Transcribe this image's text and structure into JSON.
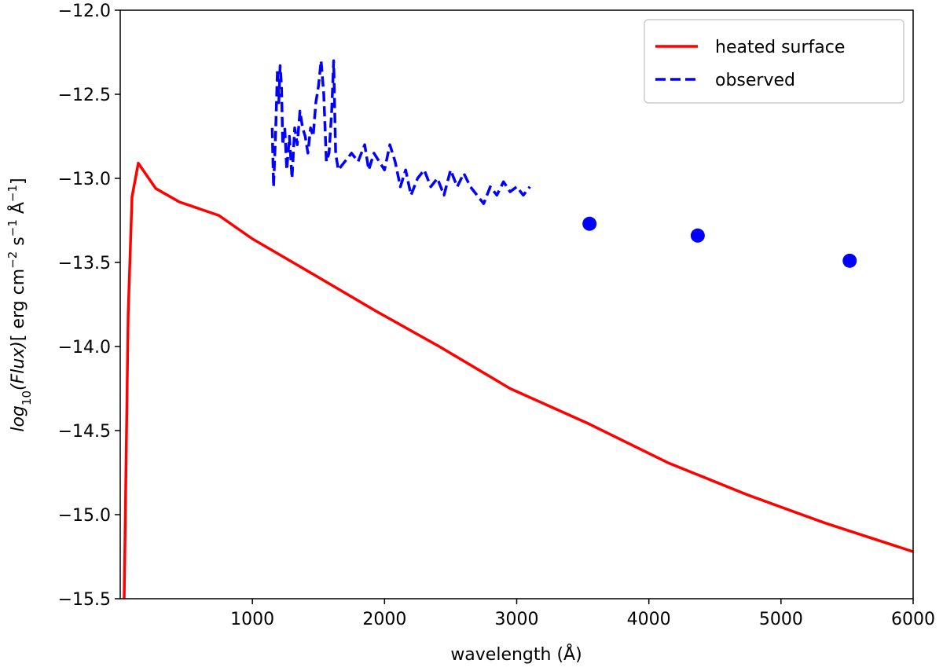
{
  "chart_data": {
    "type": "line",
    "xlabel": "wavelength (Å)",
    "ylabel": [
      "log",
      "10",
      "(Flux)",
      "[ erg cm",
      "−2",
      " s",
      "−1",
      " Å",
      "−1",
      "]"
    ],
    "xlim": [
      0,
      6000
    ],
    "ylim": [
      -15.5,
      -12.0
    ],
    "xticks": [
      1000,
      2000,
      3000,
      4000,
      5000,
      6000
    ],
    "yticks": [
      {
        "value": -15.5,
        "label": "−15.5"
      },
      {
        "value": -15.0,
        "label": "−15.0"
      },
      {
        "value": -14.5,
        "label": "−14.5"
      },
      {
        "value": -14.0,
        "label": "−14.0"
      },
      {
        "value": -13.5,
        "label": "−13.5"
      },
      {
        "value": -13.0,
        "label": "−13.0"
      },
      {
        "value": -12.5,
        "label": "−12.5"
      },
      {
        "value": -12.0,
        "label": "−12.0"
      }
    ],
    "legend": "upper right",
    "series": [
      {
        "name": "heated surface",
        "color": "#ff0000",
        "style": "solid",
        "x": [
          30,
          60,
          89,
          137,
          268,
          447,
          745,
          1000,
          1460,
          1937,
          2414,
          2950,
          3546,
          4142,
          4738,
          5334,
          6000
        ],
        "values": [
          -15.5,
          -13.81,
          -13.11,
          -12.91,
          -13.06,
          -13.14,
          -13.22,
          -13.36,
          -13.57,
          -13.79,
          -14.0,
          -14.25,
          -14.46,
          -14.69,
          -14.88,
          -15.05,
          -15.22
        ]
      },
      {
        "name": "observed",
        "color": "#0000ff",
        "style": "dashed",
        "x": [
          1150,
          1160,
          1175,
          1190,
          1200,
          1210,
          1220,
          1230,
          1245,
          1260,
          1280,
          1300,
          1320,
          1340,
          1360,
          1380,
          1400,
          1420,
          1440,
          1460,
          1480,
          1500,
          1520,
          1540,
          1560,
          1580,
          1600,
          1615,
          1630,
          1650,
          1700,
          1750,
          1800,
          1850,
          1880,
          1920,
          1960,
          2000,
          2040,
          2080,
          2120,
          2160,
          2200,
          2250,
          2300,
          2350,
          2400,
          2450,
          2500,
          2550,
          2600,
          2650,
          2700,
          2750,
          2800,
          2850,
          2900,
          2950,
          3000,
          3050,
          3100
        ],
        "values": [
          -12.7,
          -13.05,
          -12.75,
          -12.35,
          -12.55,
          -12.33,
          -12.45,
          -12.8,
          -12.7,
          -12.95,
          -12.75,
          -13.0,
          -12.7,
          -12.8,
          -12.6,
          -12.7,
          -12.75,
          -12.85,
          -12.7,
          -12.75,
          -12.55,
          -12.45,
          -12.3,
          -12.5,
          -12.9,
          -12.85,
          -12.6,
          -12.3,
          -12.85,
          -12.95,
          -12.9,
          -12.85,
          -12.9,
          -12.8,
          -12.95,
          -12.85,
          -12.9,
          -12.95,
          -12.8,
          -12.9,
          -13.05,
          -12.95,
          -13.1,
          -13.0,
          -12.95,
          -13.05,
          -13.0,
          -13.1,
          -12.95,
          -13.05,
          -12.97,
          -13.05,
          -13.1,
          -13.15,
          -13.05,
          -13.1,
          -13.02,
          -13.08,
          -13.05,
          -13.1,
          -13.05
        ]
      },
      {
        "type": "scatter",
        "color": "#0000ff",
        "x": [
          3551,
          4370,
          5520
        ],
        "values": [
          -13.27,
          -13.34,
          -13.49
        ]
      }
    ]
  }
}
